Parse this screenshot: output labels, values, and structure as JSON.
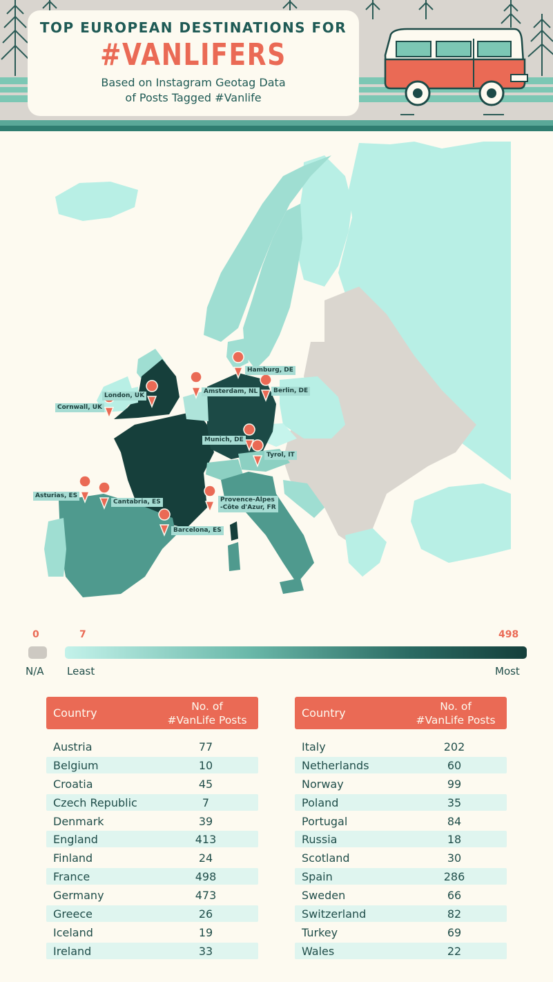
{
  "header": {
    "title_top": "TOP EUROPEAN DESTINATIONS FOR",
    "title_main": "#VANLIFERS",
    "subtitle_line1": "Based on Instagram Geotag Data",
    "subtitle_line2": "of Posts Tagged #Vanlife"
  },
  "colors": {
    "accent": "#ea6a55",
    "no_data": "#cdc9c2",
    "least": "#c3f2ea",
    "most": "#153f3b"
  },
  "map": {
    "pins": [
      {
        "label": "Hamburg, DE"
      },
      {
        "label": "Amsterdam, NL"
      },
      {
        "label": "Berlin, DE"
      },
      {
        "label": "London, UK"
      },
      {
        "label": "Cornwall, UK"
      },
      {
        "label": "Munich, DE"
      },
      {
        "label": "Tyrol, IT"
      },
      {
        "label": "Asturias, ES"
      },
      {
        "label": "Cantabria, ES"
      },
      {
        "label": "Provence-Alpes",
        "label2": "-Côte d'Azur, FR"
      },
      {
        "label": "Barcelona, ES"
      }
    ]
  },
  "legend": {
    "na_value": "0",
    "min_value": "7",
    "max_value": "498",
    "na_label": "N/A",
    "least_label": "Least",
    "most_label": "Most"
  },
  "table": {
    "col_country": "Country",
    "col_posts_line1": "No. of",
    "col_posts_line2": "#VanLife Posts",
    "left": [
      {
        "country": "Austria",
        "posts": "77"
      },
      {
        "country": "Belgium",
        "posts": "10"
      },
      {
        "country": "Croatia",
        "posts": "45"
      },
      {
        "country": "Czech Republic",
        "posts": "7"
      },
      {
        "country": "Denmark",
        "posts": "39"
      },
      {
        "country": "England",
        "posts": "413"
      },
      {
        "country": "Finland",
        "posts": "24"
      },
      {
        "country": "France",
        "posts": "498"
      },
      {
        "country": "Germany",
        "posts": "473"
      },
      {
        "country": "Greece",
        "posts": "26"
      },
      {
        "country": "Iceland",
        "posts": "19"
      },
      {
        "country": "Ireland",
        "posts": "33"
      }
    ],
    "right": [
      {
        "country": "Italy",
        "posts": "202"
      },
      {
        "country": "Netherlands",
        "posts": "60"
      },
      {
        "country": "Norway",
        "posts": "99"
      },
      {
        "country": "Poland",
        "posts": "35"
      },
      {
        "country": "Portugal",
        "posts": "84"
      },
      {
        "country": "Russia",
        "posts": "18"
      },
      {
        "country": "Scotland",
        "posts": "30"
      },
      {
        "country": "Spain",
        "posts": "286"
      },
      {
        "country": "Sweden",
        "posts": "66"
      },
      {
        "country": "Switzerland",
        "posts": "82"
      },
      {
        "country": "Turkey",
        "posts": "69"
      },
      {
        "country": "Wales",
        "posts": "22"
      }
    ]
  }
}
